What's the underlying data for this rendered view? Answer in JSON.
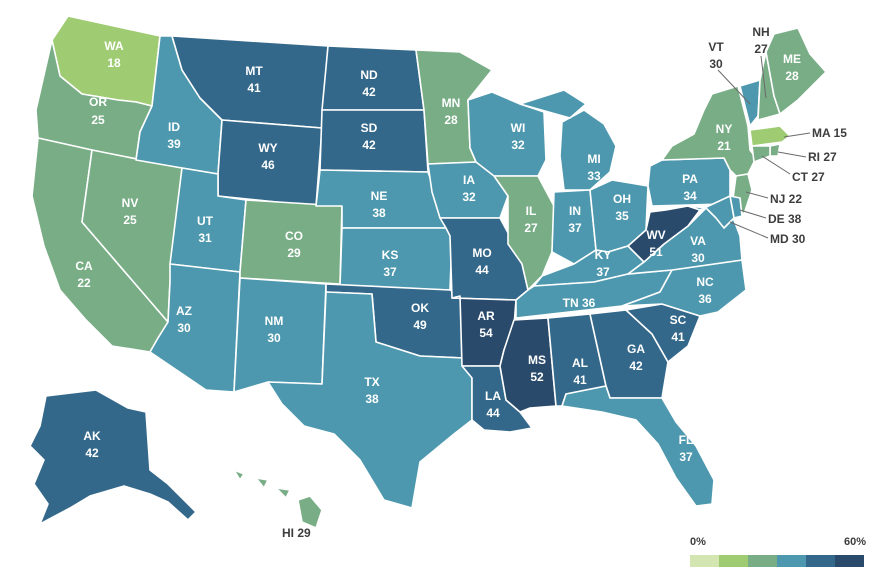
{
  "legend": {
    "min_label": "0%",
    "max_label": "60%",
    "min": 0,
    "max": 60,
    "swatches": [
      "#d3e6b2",
      "#9fcb73",
      "#78ad86",
      "#4d98ae",
      "#34688a",
      "#2a4a6b"
    ]
  },
  "states": [
    {
      "id": "WA",
      "value": 18
    },
    {
      "id": "OR",
      "value": 25
    },
    {
      "id": "CA",
      "value": 22
    },
    {
      "id": "NV",
      "value": 25
    },
    {
      "id": "ID",
      "value": 39
    },
    {
      "id": "MT",
      "value": 41
    },
    {
      "id": "WY",
      "value": 46
    },
    {
      "id": "UT",
      "value": 31
    },
    {
      "id": "AZ",
      "value": 30
    },
    {
      "id": "CO",
      "value": 29
    },
    {
      "id": "NM",
      "value": 30
    },
    {
      "id": "ND",
      "value": 42
    },
    {
      "id": "SD",
      "value": 42
    },
    {
      "id": "NE",
      "value": 38
    },
    {
      "id": "KS",
      "value": 37
    },
    {
      "id": "OK",
      "value": 49
    },
    {
      "id": "TX",
      "value": 38
    },
    {
      "id": "MN",
      "value": 28
    },
    {
      "id": "IA",
      "value": 32
    },
    {
      "id": "MO",
      "value": 44
    },
    {
      "id": "AR",
      "value": 54
    },
    {
      "id": "LA",
      "value": 44
    },
    {
      "id": "WI",
      "value": 32
    },
    {
      "id": "IL",
      "value": 27
    },
    {
      "id": "MI",
      "value": 33
    },
    {
      "id": "IN",
      "value": 37
    },
    {
      "id": "OH",
      "value": 35
    },
    {
      "id": "KY",
      "value": 37
    },
    {
      "id": "TN",
      "value": 36
    },
    {
      "id": "MS",
      "value": 52
    },
    {
      "id": "AL",
      "value": 41
    },
    {
      "id": "GA",
      "value": 42
    },
    {
      "id": "FL",
      "value": 37
    },
    {
      "id": "SC",
      "value": 41
    },
    {
      "id": "NC",
      "value": 36
    },
    {
      "id": "VA",
      "value": 30
    },
    {
      "id": "WV",
      "value": 51
    },
    {
      "id": "PA",
      "value": 34
    },
    {
      "id": "NY",
      "value": 21
    },
    {
      "id": "VT",
      "value": 30
    },
    {
      "id": "NH",
      "value": 27
    },
    {
      "id": "ME",
      "value": 28
    },
    {
      "id": "MA",
      "value": 15
    },
    {
      "id": "RI",
      "value": 27
    },
    {
      "id": "CT",
      "value": 27
    },
    {
      "id": "NJ",
      "value": 22
    },
    {
      "id": "DE",
      "value": 38
    },
    {
      "id": "MD",
      "value": 30
    },
    {
      "id": "AK",
      "value": 42
    },
    {
      "id": "HI",
      "value": 29
    }
  ]
}
